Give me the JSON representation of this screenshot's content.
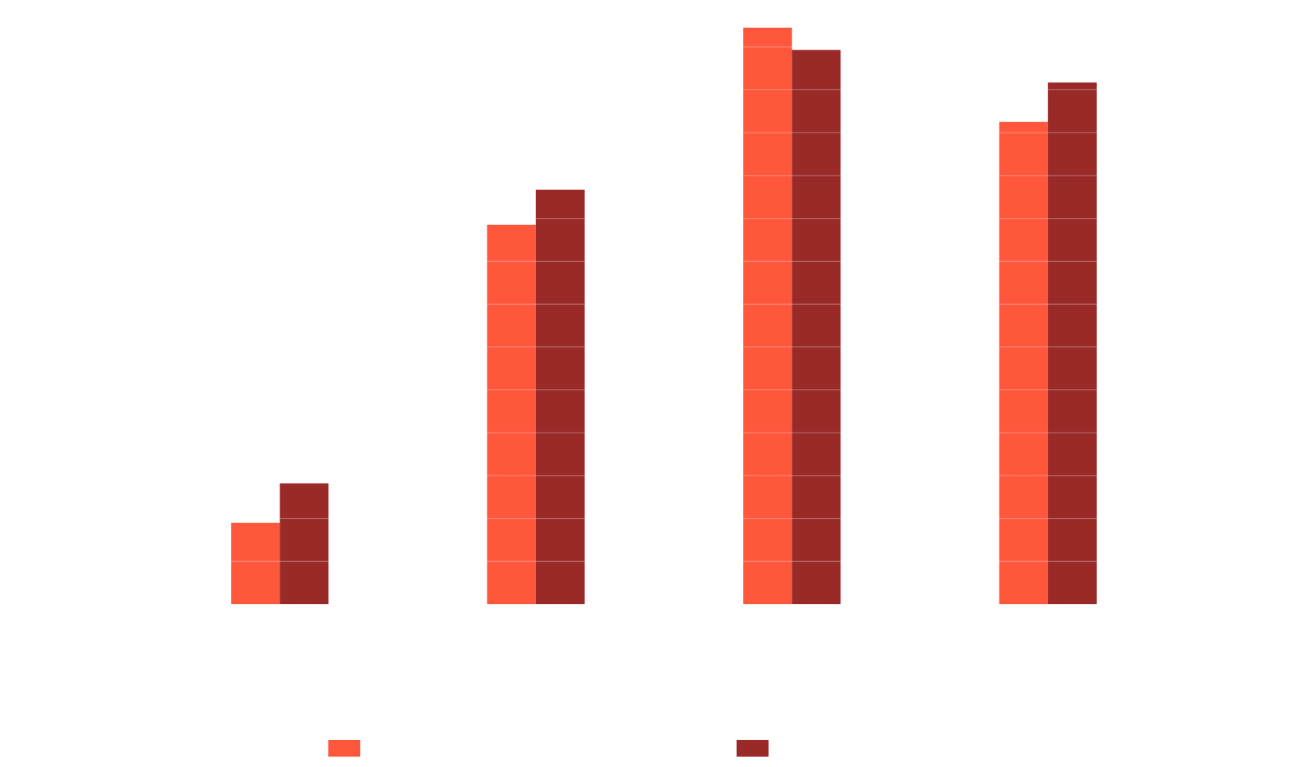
{
  "chart_data": {
    "type": "bar",
    "title": "",
    "xlabel": "",
    "ylabel": "",
    "categories": [
      "",
      "",
      "",
      ""
    ],
    "ylim": [
      0,
      13.5
    ],
    "grid": true,
    "legend_position": "bottom",
    "series": [
      {
        "name": "",
        "color": "#ff573b",
        "values": [
          1.9,
          8.85,
          13.45,
          11.25
        ]
      },
      {
        "name": "",
        "color": "#992a28",
        "values": [
          2.82,
          9.67,
          12.93,
          12.17
        ]
      }
    ]
  }
}
